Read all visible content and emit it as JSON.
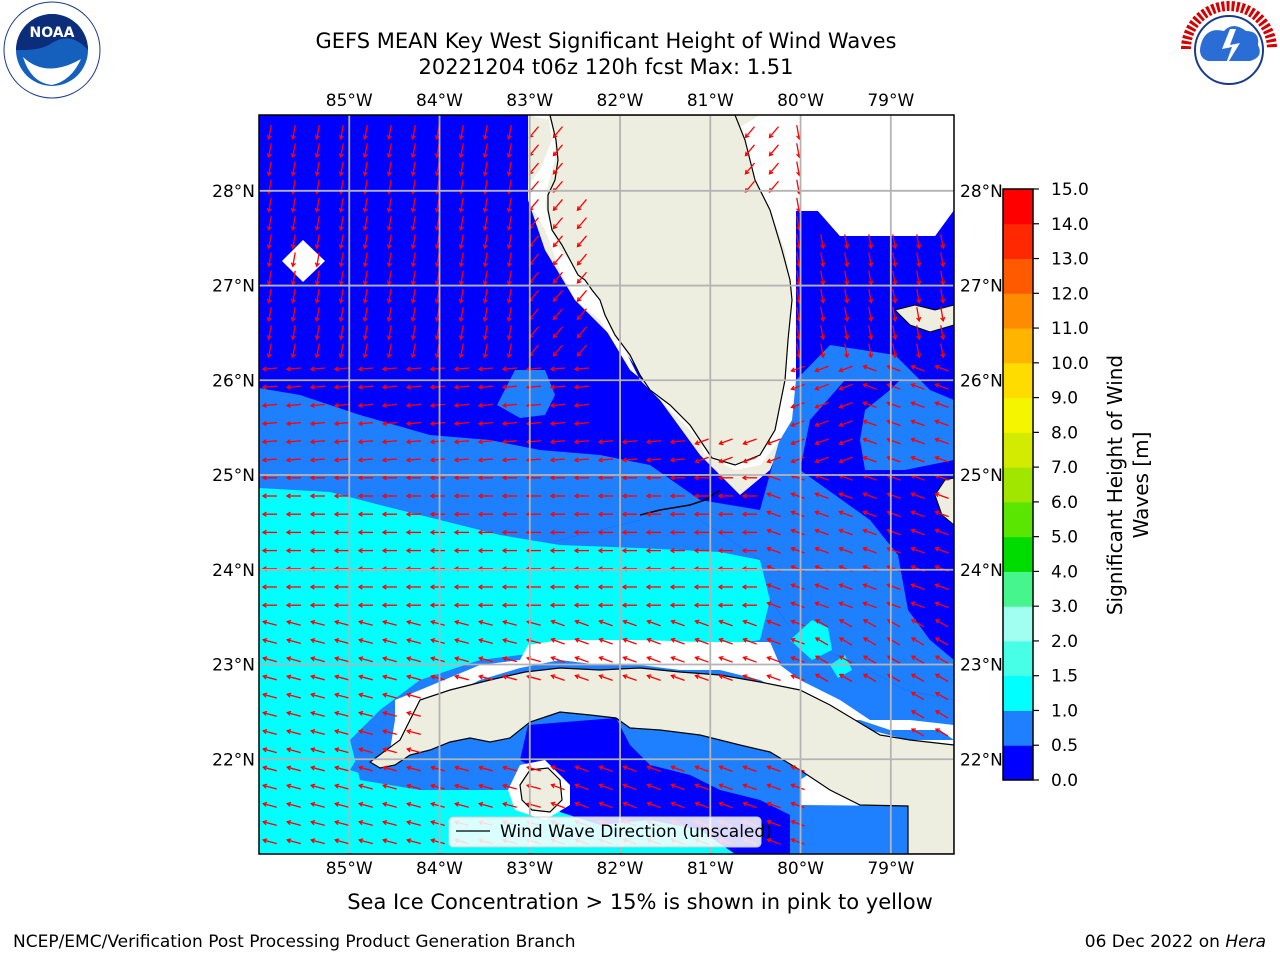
{
  "title": {
    "line1": "GEFS MEAN Key West Significant Height of Wind Waves",
    "line2": "20221204 t06z 120h fcst   Max: 1.51"
  },
  "map": {
    "lon_labels": [
      "85°W",
      "84°W",
      "83°W",
      "82°W",
      "81°W",
      "80°W",
      "79°W"
    ],
    "lat_labels": [
      "28°N",
      "27°N",
      "26°N",
      "25°N",
      "24°N",
      "23°N",
      "22°N"
    ],
    "lon_range": [
      -86,
      -78.3
    ],
    "lat_range": [
      21.0,
      28.8
    ],
    "legend_label": "Wind Wave Direction (unscaled)",
    "arrow_color": "#ff0000",
    "land_color": "#eeeee0"
  },
  "colorbar": {
    "title_line1": "Significant Height of Wind",
    "title_line2": "Waves [m]",
    "ticks": [
      "0.0",
      "0.5",
      "1.0",
      "1.5",
      "2.0",
      "3.0",
      "4.0",
      "5.0",
      "6.0",
      "7.0",
      "8.0",
      "9.0",
      "10.0",
      "11.0",
      "12.0",
      "13.0",
      "14.0",
      "15.0"
    ],
    "colors": [
      "#0000ff",
      "#1e7fff",
      "#00ffff",
      "#46ffe6",
      "#a0fff0",
      "#46f58c",
      "#00dc00",
      "#5ae600",
      "#a0e600",
      "#d2eb00",
      "#f5f500",
      "#ffdc00",
      "#ffb400",
      "#ff8c00",
      "#ff5a00",
      "#ff2800",
      "#ff0000"
    ]
  },
  "chart_data": {
    "type": "heatmap",
    "title": "GEFS MEAN Key West Significant Height of Wind Waves",
    "subtitle": "20221204 t06z 120h fcst   Max: 1.51",
    "variable": "Significant Height of Wind Waves [m]",
    "max": 1.51,
    "levels": [
      0.0,
      0.5,
      1.0,
      1.5,
      2.0,
      3.0,
      4.0,
      5.0,
      6.0,
      7.0,
      8.0,
      9.0,
      10.0,
      11.0,
      12.0,
      13.0,
      14.0,
      15.0
    ],
    "region": "Key West / Florida Straits",
    "x_range": [
      -86,
      -78.3
    ],
    "y_range": [
      21.0,
      28.8
    ]
  },
  "notes": {
    "ice": "Sea Ice Concentration > 15% is shown in pink to yellow"
  },
  "footer": {
    "left": "NCEP/EMC/Verification Post Processing Product Generation Branch",
    "right_date": "06 Dec 2022 on ",
    "right_host": "Hera"
  },
  "logos": {
    "noaa": "NOAA",
    "noaa_ring": "NATIONAL OCEANIC AND ATMOSPHERIC ADMINISTRATION · U.S. DEPARTMENT OF COMMERCE",
    "nws_ring": "NATIONAL WEATHER SERVICE"
  }
}
